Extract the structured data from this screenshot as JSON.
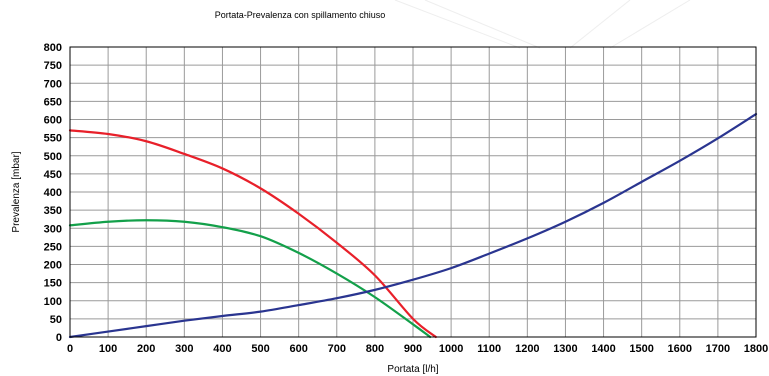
{
  "chart_data": {
    "type": "line",
    "title": "Portata-Prevalenza con spillamento chiuso",
    "xlabel": "Portata [l/h]",
    "ylabel": "Prevalenza [mbar]",
    "xlim": [
      0,
      1800
    ],
    "ylim": [
      0,
      800
    ],
    "x_ticks": [
      0,
      100,
      200,
      300,
      400,
      500,
      600,
      700,
      800,
      900,
      1000,
      1100,
      1200,
      1300,
      1400,
      1500,
      1600,
      1700,
      1800
    ],
    "y_ticks": [
      0,
      50,
      100,
      150,
      200,
      250,
      300,
      350,
      400,
      450,
      500,
      550,
      600,
      650,
      700,
      750,
      800
    ],
    "grid": true,
    "legend": "none",
    "series": [
      {
        "color": "#e8202a",
        "points": [
          [
            0,
            570
          ],
          [
            100,
            560
          ],
          [
            200,
            540
          ],
          [
            300,
            505
          ],
          [
            400,
            465
          ],
          [
            500,
            410
          ],
          [
            600,
            340
          ],
          [
            700,
            260
          ],
          [
            800,
            170
          ],
          [
            900,
            50
          ],
          [
            960,
            0
          ]
        ]
      },
      {
        "color": "#13a04a",
        "points": [
          [
            0,
            308
          ],
          [
            100,
            318
          ],
          [
            200,
            322
          ],
          [
            300,
            318
          ],
          [
            400,
            303
          ],
          [
            500,
            278
          ],
          [
            600,
            232
          ],
          [
            700,
            175
          ],
          [
            800,
            110
          ],
          [
            900,
            35
          ],
          [
            945,
            0
          ]
        ]
      },
      {
        "color": "#2a3590",
        "points": [
          [
            0,
            0
          ],
          [
            100,
            15
          ],
          [
            200,
            30
          ],
          [
            300,
            45
          ],
          [
            400,
            58
          ],
          [
            500,
            70
          ],
          [
            600,
            88
          ],
          [
            700,
            107
          ],
          [
            800,
            130
          ],
          [
            900,
            158
          ],
          [
            1000,
            190
          ],
          [
            1100,
            230
          ],
          [
            1200,
            272
          ],
          [
            1300,
            318
          ],
          [
            1400,
            370
          ],
          [
            1500,
            428
          ],
          [
            1600,
            486
          ],
          [
            1700,
            548
          ],
          [
            1800,
            615
          ]
        ]
      }
    ]
  }
}
